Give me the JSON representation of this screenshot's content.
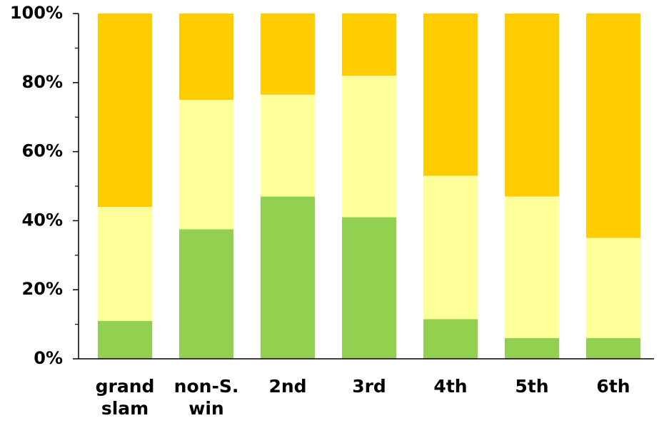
{
  "chart_data": {
    "type": "stacked_bar",
    "categories": [
      "grand slam",
      "non-S. win",
      "2nd",
      "3rd",
      "4th",
      "5th",
      "6th"
    ],
    "series": [
      {
        "color": "#92d050",
        "values": [
          11,
          37.5,
          47,
          41,
          11.5,
          6,
          6
        ]
      },
      {
        "color": "#ffff99",
        "values": [
          33,
          37.5,
          29.5,
          41,
          41.5,
          41,
          29
        ]
      },
      {
        "color": "#ffcc00",
        "values": [
          56,
          25,
          23.5,
          18,
          47,
          53,
          65
        ]
      }
    ],
    "ylim": [
      0,
      100
    ],
    "yticks": [
      {
        "value": 0,
        "label": "0%"
      },
      {
        "value": 20,
        "label": "20%"
      },
      {
        "value": 40,
        "label": "40%"
      },
      {
        "value": 60,
        "label": "60%"
      },
      {
        "value": 80,
        "label": "80%"
      },
      {
        "value": 100,
        "label": "100%"
      }
    ],
    "minor_yticks": [
      10,
      30,
      50,
      70,
      90
    ]
  }
}
